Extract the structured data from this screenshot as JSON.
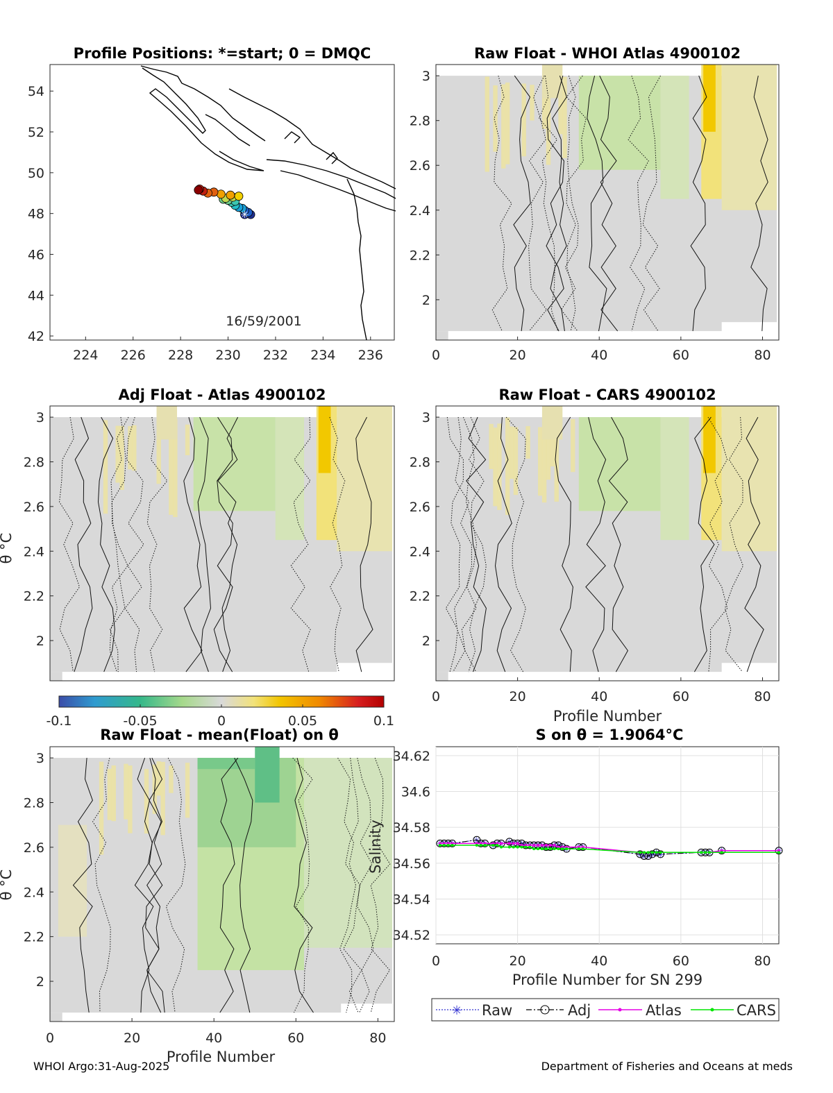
{
  "footer": {
    "left": "WHOI Argo:31-Aug-2025",
    "right": "Department of Fisheries and Oceans at meds"
  },
  "colorbar": {
    "ticks": [
      "-0.1",
      "-0.05",
      "0",
      "0.05",
      "0.1"
    ],
    "range": [
      -0.1,
      0.1
    ],
    "colormap": [
      "#3b4ca8",
      "#2f9bd0",
      "#35b88a",
      "#a6d98b",
      "#d9d9d9",
      "#f2e27a",
      "#f2c500",
      "#f08a00",
      "#d71f1f",
      "#b30000"
    ]
  },
  "chart_data": [
    {
      "type": "map",
      "title": "Profile Positions: *=start; 0 = DMQC",
      "annotation": "16/59/2001",
      "xlim": [
        222.5,
        237
      ],
      "ylim": [
        41.8,
        55.3
      ],
      "xticks": [
        "224",
        "226",
        "228",
        "230",
        "232",
        "234",
        "236"
      ],
      "yticks": [
        "42",
        "44",
        "46",
        "48",
        "50",
        "52",
        "54"
      ],
      "track": [
        {
          "lon": 230.7,
          "lat": 47.95
        },
        {
          "lon": 230.95,
          "lat": 47.95
        },
        {
          "lon": 230.85,
          "lat": 48.05
        },
        {
          "lon": 230.7,
          "lat": 48.15
        },
        {
          "lon": 230.6,
          "lat": 48.25
        },
        {
          "lon": 230.45,
          "lat": 48.3
        },
        {
          "lon": 230.3,
          "lat": 48.4
        },
        {
          "lon": 230.15,
          "lat": 48.55
        },
        {
          "lon": 230.3,
          "lat": 48.6
        },
        {
          "lon": 230.0,
          "lat": 48.65
        },
        {
          "lon": 229.8,
          "lat": 48.7
        },
        {
          "lon": 229.9,
          "lat": 48.75
        },
        {
          "lon": 230.2,
          "lat": 48.8
        },
        {
          "lon": 230.45,
          "lat": 48.85
        },
        {
          "lon": 230.1,
          "lat": 48.9
        },
        {
          "lon": 229.7,
          "lat": 48.95
        },
        {
          "lon": 229.4,
          "lat": 49.05
        },
        {
          "lon": 229.15,
          "lat": 49.0
        },
        {
          "lon": 228.95,
          "lat": 49.1
        },
        {
          "lon": 228.8,
          "lat": 49.2
        },
        {
          "lon": 228.75,
          "lat": 49.15
        }
      ],
      "start": {
        "lon": 230.7,
        "lat": 47.95
      }
    },
    {
      "type": "heatmap",
      "title": "Raw Float - WHOI Atlas  4900102",
      "xlabel": "",
      "ylabel": "",
      "xlim": [
        0,
        84
      ],
      "ylim": [
        1.82,
        3.05
      ],
      "xticks": [
        "0",
        "20",
        "40",
        "60",
        "80"
      ],
      "yticks": [
        "2",
        "2.2",
        "2.4",
        "2.6",
        "2.8",
        "3"
      ]
    },
    {
      "type": "heatmap",
      "title": "Adj Float - Atlas  4900102",
      "xlabel": "",
      "ylabel": "θ °C",
      "xlim": [
        0,
        84
      ],
      "ylim": [
        1.82,
        3.05
      ],
      "xticks": [],
      "yticks": [
        "2",
        "2.2",
        "2.4",
        "2.6",
        "2.8",
        "3"
      ]
    },
    {
      "type": "heatmap",
      "title": "Raw Float - CARS  4900102",
      "xlabel": "Profile Number",
      "ylabel": "",
      "xlim": [
        0,
        84
      ],
      "ylim": [
        1.82,
        3.05
      ],
      "xticks": [
        "0",
        "20",
        "40",
        "60",
        "80"
      ],
      "yticks": [
        "2",
        "2.2",
        "2.4",
        "2.6",
        "2.8",
        "3"
      ]
    },
    {
      "type": "heatmap",
      "title": "Raw Float - mean(Float) on θ",
      "xlabel": "Profile Number",
      "ylabel": "θ °C",
      "xlim": [
        0,
        84
      ],
      "ylim": [
        1.82,
        3.05
      ],
      "xticks": [
        "0",
        "20",
        "40",
        "60",
        "80"
      ],
      "yticks": [
        "2",
        "2.2",
        "2.4",
        "2.6",
        "2.8",
        "3"
      ]
    },
    {
      "type": "line",
      "title": "S on θ = 1.9064°C",
      "xlabel": "Profile Number for SN 299",
      "ylabel": "Salinity",
      "xlim": [
        0,
        84
      ],
      "ylim": [
        34.515,
        34.625
      ],
      "xticks": [
        "0",
        "20",
        "40",
        "60",
        "80"
      ],
      "yticks": [
        "34.52",
        "34.54",
        "34.56",
        "34.58",
        "34.6",
        "34.62"
      ],
      "x": [
        1,
        2,
        3,
        4,
        10,
        11,
        12,
        14,
        15,
        16,
        18,
        19,
        20,
        21,
        22,
        23,
        24,
        25,
        26,
        27,
        28,
        29,
        30,
        31,
        32,
        35,
        36,
        50,
        51,
        52,
        53,
        54,
        55,
        65,
        66,
        67,
        70,
        84
      ],
      "series": [
        {
          "name": "Raw",
          "color": "#3030d0",
          "values": [
            34.571,
            34.571,
            34.571,
            34.571,
            34.573,
            34.571,
            34.571,
            34.57,
            34.571,
            34.571,
            34.572,
            34.571,
            34.571,
            34.571,
            34.57,
            34.57,
            34.57,
            34.57,
            34.57,
            34.569,
            34.569,
            34.57,
            34.57,
            34.569,
            34.568,
            34.569,
            34.569,
            34.565,
            34.564,
            34.564,
            34.565,
            34.566,
            34.565,
            34.566,
            34.566,
            34.566,
            34.567,
            34.567
          ]
        },
        {
          "name": "Adj",
          "color": "#000000",
          "values": [
            34.571,
            34.571,
            34.571,
            34.571,
            34.573,
            34.571,
            34.571,
            34.57,
            34.571,
            34.571,
            34.572,
            34.571,
            34.571,
            34.571,
            34.57,
            34.57,
            34.57,
            34.57,
            34.57,
            34.569,
            34.569,
            34.57,
            34.57,
            34.569,
            34.568,
            34.569,
            34.569,
            34.565,
            34.564,
            34.564,
            34.565,
            34.566,
            34.565,
            34.566,
            34.566,
            34.566,
            34.567,
            34.567
          ]
        },
        {
          "name": "Atlas",
          "color": "#e600e6",
          "values": [
            34.571,
            34.571,
            34.571,
            34.571,
            34.571,
            34.571,
            34.571,
            34.571,
            34.571,
            34.571,
            34.571,
            34.571,
            34.571,
            34.57,
            34.57,
            34.57,
            34.57,
            34.57,
            34.57,
            34.57,
            34.57,
            34.57,
            34.569,
            34.569,
            34.569,
            34.569,
            34.569,
            34.566,
            34.566,
            34.566,
            34.566,
            34.566,
            34.566,
            34.566,
            34.566,
            34.566,
            34.567,
            34.567
          ]
        },
        {
          "name": "CARS",
          "color": "#00e600",
          "values": [
            34.57,
            34.57,
            34.57,
            34.57,
            34.57,
            34.57,
            34.57,
            34.57,
            34.57,
            34.569,
            34.569,
            34.569,
            34.569,
            34.569,
            34.569,
            34.569,
            34.568,
            34.568,
            34.568,
            34.568,
            34.568,
            34.568,
            34.568,
            34.568,
            34.568,
            34.568,
            34.568,
            34.566,
            34.566,
            34.566,
            34.566,
            34.566,
            34.566,
            34.566,
            34.566,
            34.566,
            34.566,
            34.566
          ]
        }
      ],
      "legend": [
        "Raw",
        "Adj",
        "Atlas",
        "CARS"
      ],
      "legend_position": "below"
    }
  ]
}
